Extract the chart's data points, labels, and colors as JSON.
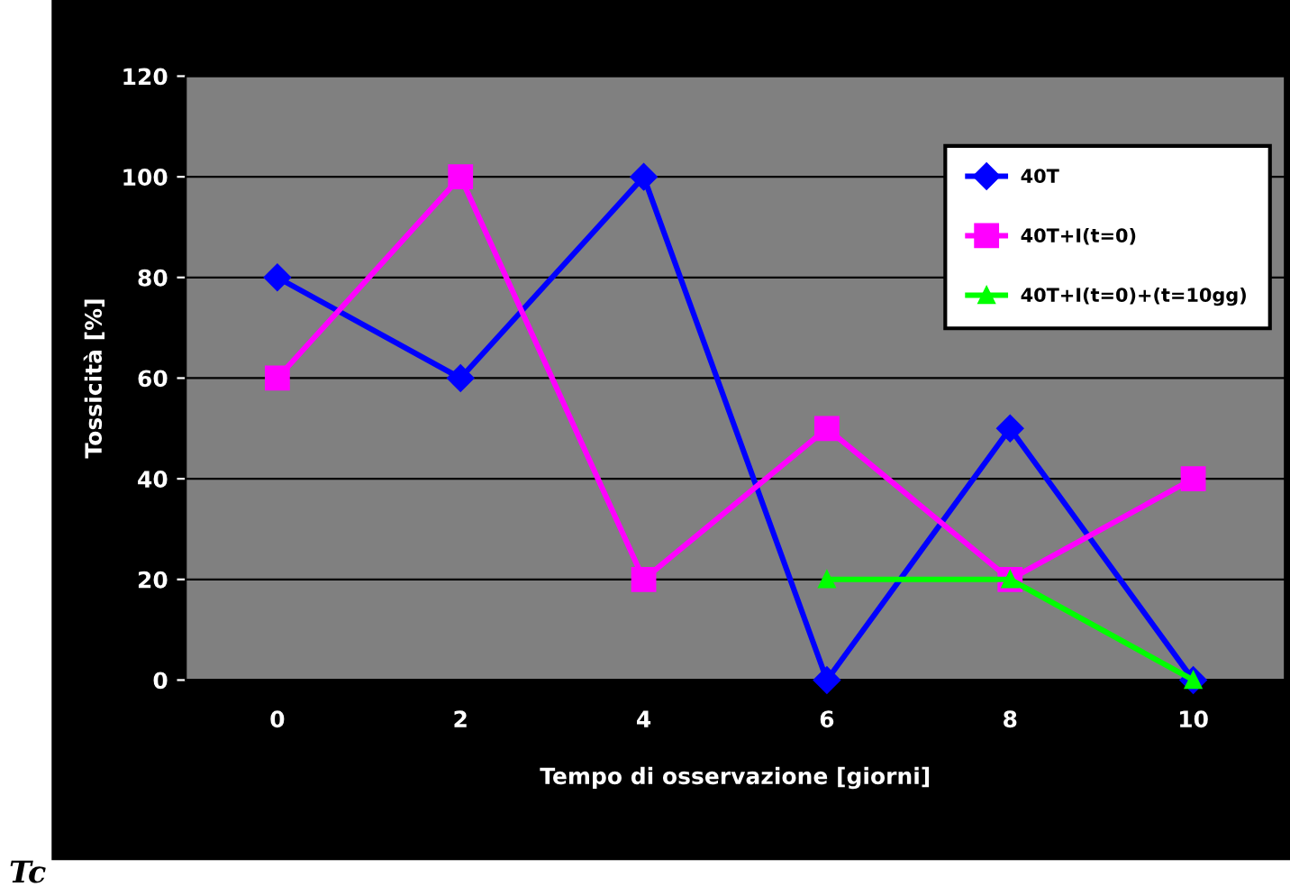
{
  "chart_data": {
    "type": "line",
    "xlabel": "Tempo di osservazione [giorni]",
    "ylabel": "Tossicità [%]",
    "categories": [
      "0",
      "2",
      "4",
      "6",
      "8",
      "10"
    ],
    "series": [
      {
        "name": "40T",
        "color": "#0000ff",
        "marker": "diamond",
        "values": [
          80,
          60,
          100,
          0,
          50,
          0
        ]
      },
      {
        "name": "40T+I(t=0)",
        "color": "#ff00ff",
        "marker": "square",
        "values": [
          60,
          100,
          20,
          50,
          20,
          40
        ]
      },
      {
        "name": "40T+I(t=0)+(t=10gg)",
        "color": "#00ff00",
        "marker": "triangle",
        "values": [
          null,
          null,
          null,
          20,
          20,
          0
        ]
      }
    ],
    "ylim": [
      0,
      120
    ],
    "yticks": [
      0,
      20,
      40,
      60,
      80,
      100,
      120
    ],
    "grid": "y",
    "legend": "top right",
    "annotations": [
      "Tc"
    ]
  }
}
